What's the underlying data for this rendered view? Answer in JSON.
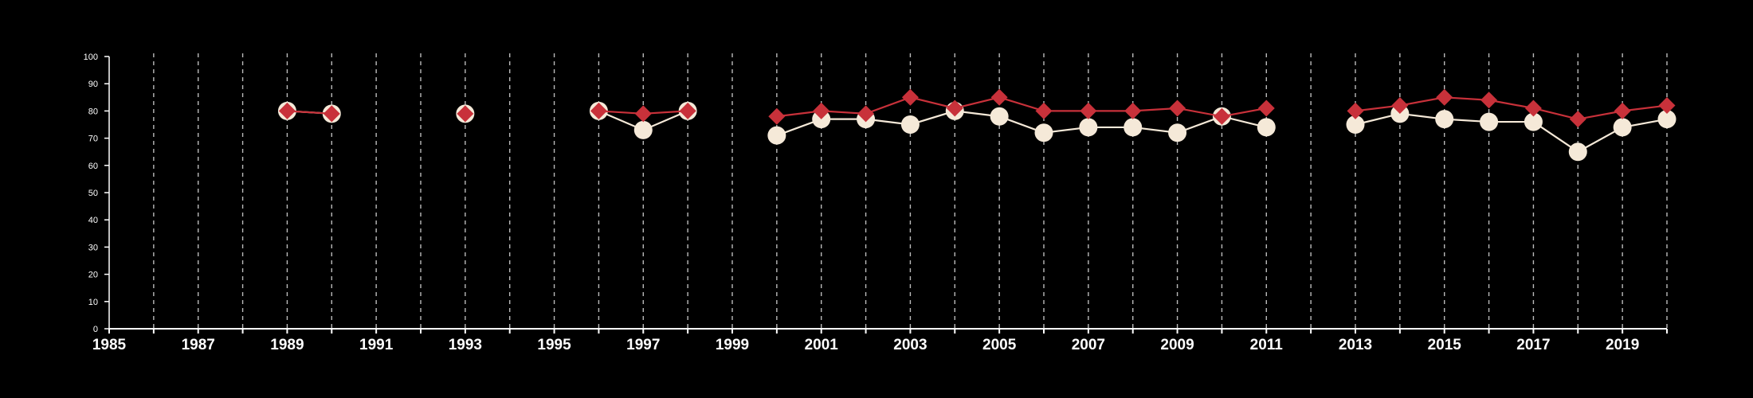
{
  "chart_data": {
    "type": "line",
    "title": "",
    "xlabel": "",
    "ylabel": "",
    "xlim": [
      1985,
      2020
    ],
    "ylim": [
      0,
      100
    ],
    "x_ticks": [
      1985,
      1987,
      1989,
      1991,
      1993,
      1995,
      1997,
      1999,
      2001,
      2003,
      2005,
      2007,
      2009,
      2011,
      2013,
      2015,
      2017,
      2019
    ],
    "y_ticks": [
      0,
      10,
      20,
      30,
      40,
      50,
      60,
      70,
      80,
      90,
      100
    ],
    "x_tick_labels": [
      "1985",
      "1987",
      "1989",
      "1991",
      "1993",
      "1995",
      "1997",
      "1999",
      "2001",
      "2003",
      "2005",
      "2007",
      "2009",
      "2011",
      "2013",
      "2015",
      "2017",
      "2019"
    ],
    "y_tick_labels": [
      "0",
      "10",
      "20",
      "30",
      "40",
      "50",
      "60",
      "70",
      "80",
      "90",
      "100"
    ],
    "grid": "vertical dashed lines at every year",
    "legend": "none",
    "background": "#000000",
    "series": [
      {
        "marker": "circle",
        "color": "#f5e9d8",
        "segments": [
          {
            "x": [
              1989,
              1990
            ],
            "y": [
              80,
              79
            ]
          },
          {
            "x": [
              1993
            ],
            "y": [
              79
            ]
          },
          {
            "x": [
              1996,
              1997,
              1998
            ],
            "y": [
              80,
              73,
              80
            ]
          },
          {
            "x": [
              2000,
              2001,
              2002,
              2003,
              2004,
              2005,
              2006,
              2007,
              2008,
              2009,
              2010,
              2011
            ],
            "y": [
              71,
              77,
              77,
              75,
              80,
              78,
              72,
              74,
              74,
              72,
              78,
              74
            ]
          },
          {
            "x": [
              2013,
              2014,
              2015,
              2016,
              2017,
              2018,
              2019,
              2020
            ],
            "y": [
              75,
              79,
              77,
              76,
              76,
              65,
              74,
              77
            ]
          }
        ]
      },
      {
        "marker": "diamond",
        "color": "#c8313a",
        "segments": [
          {
            "x": [
              1989,
              1990
            ],
            "y": [
              80,
              79
            ]
          },
          {
            "x": [
              1993
            ],
            "y": [
              79
            ]
          },
          {
            "x": [
              1996,
              1997,
              1998
            ],
            "y": [
              80,
              79,
              80
            ]
          },
          {
            "x": [
              2000,
              2001,
              2002,
              2003,
              2004,
              2005,
              2006,
              2007,
              2008,
              2009,
              2010,
              2011
            ],
            "y": [
              78,
              80,
              79,
              85,
              81,
              85,
              80,
              80,
              80,
              81,
              78,
              81
            ]
          },
          {
            "x": [
              2013,
              2014,
              2015,
              2016,
              2017,
              2018,
              2019,
              2020
            ],
            "y": [
              80,
              82,
              85,
              84,
              81,
              77,
              80,
              82
            ]
          }
        ]
      }
    ]
  }
}
